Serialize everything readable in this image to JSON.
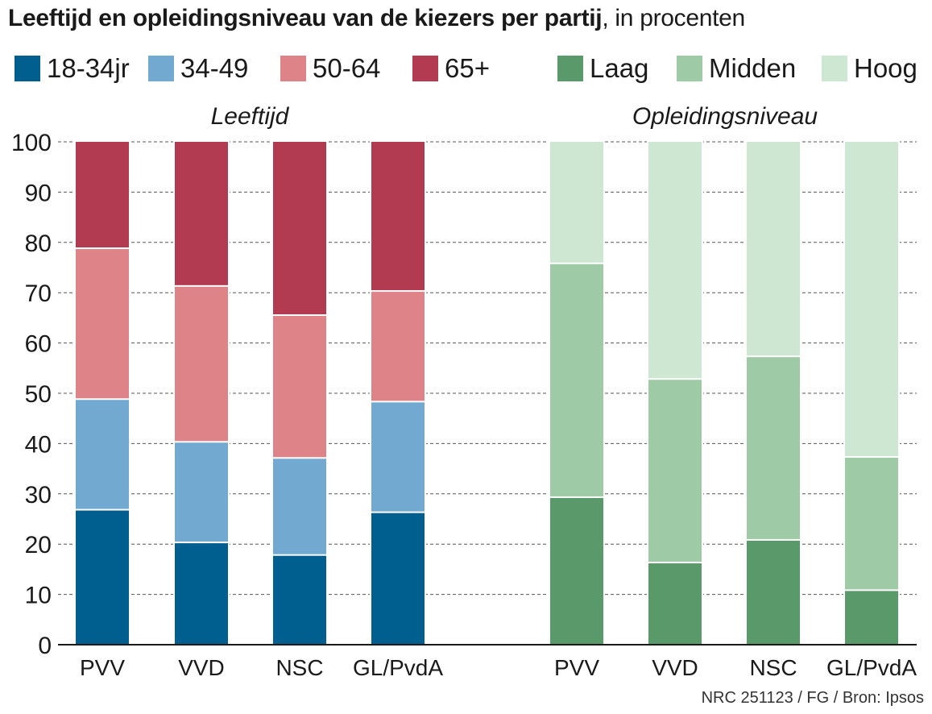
{
  "title": {
    "bold": "Leeftijd en opleidingsniveau van de kiezers per partij",
    "light": ", in procenten"
  },
  "colors": {
    "18-34jr": "#005f8f",
    "34-49": "#72a9d0",
    "50-64": "#de8489",
    "65+": "#b23b52",
    "Laag": "#5a9a6a",
    "Midden": "#9fcaa6",
    "Hoog": "#cde7d2",
    "grid": "#555555",
    "axis": "#1a1a1a"
  },
  "legend": [
    {
      "label": "18-34jr",
      "color_key": "18-34jr"
    },
    {
      "label": "34-49",
      "color_key": "34-49"
    },
    {
      "label": "50-64",
      "color_key": "50-64"
    },
    {
      "label": "65+",
      "color_key": "65+"
    },
    {
      "label": "Laag",
      "color_key": "Laag"
    },
    {
      "label": "Midden",
      "color_key": "Midden"
    },
    {
      "label": "Hoog",
      "color_key": "Hoog"
    }
  ],
  "source": "NRC 251123 / FG / Bron: Ipsos",
  "chart_data": [
    {
      "type": "bar",
      "stacked": true,
      "title": "Leeftijd",
      "categories": [
        "PVV",
        "VVD",
        "NSC",
        "GL/PvdA"
      ],
      "series": [
        {
          "name": "18-34jr",
          "values": [
            27,
            20.5,
            18,
            26.5
          ]
        },
        {
          "name": "34-49",
          "values": [
            22,
            20,
            19.3,
            22
          ]
        },
        {
          "name": "50-64",
          "values": [
            30,
            31,
            28.4,
            22
          ]
        },
        {
          "name": "65+",
          "values": [
            21,
            28.5,
            34.3,
            29.5
          ]
        }
      ],
      "ylim": [
        0,
        100
      ],
      "yticks": [
        0,
        10,
        20,
        30,
        40,
        50,
        60,
        70,
        80,
        90,
        100
      ],
      "grid": true
    },
    {
      "type": "bar",
      "stacked": true,
      "title": "Opleidingsniveau",
      "categories": [
        "PVV",
        "VVD",
        "NSC",
        "GL/PvdA"
      ],
      "series": [
        {
          "name": "Laag",
          "values": [
            29.5,
            16.5,
            21,
            11
          ]
        },
        {
          "name": "Midden",
          "values": [
            46.5,
            36.5,
            36.5,
            26.5
          ]
        },
        {
          "name": "Hoog",
          "values": [
            24,
            47,
            42.5,
            62.5
          ]
        }
      ],
      "ylim": [
        0,
        100
      ],
      "yticks": [
        0,
        10,
        20,
        30,
        40,
        50,
        60,
        70,
        80,
        90,
        100
      ],
      "grid": true
    }
  ]
}
